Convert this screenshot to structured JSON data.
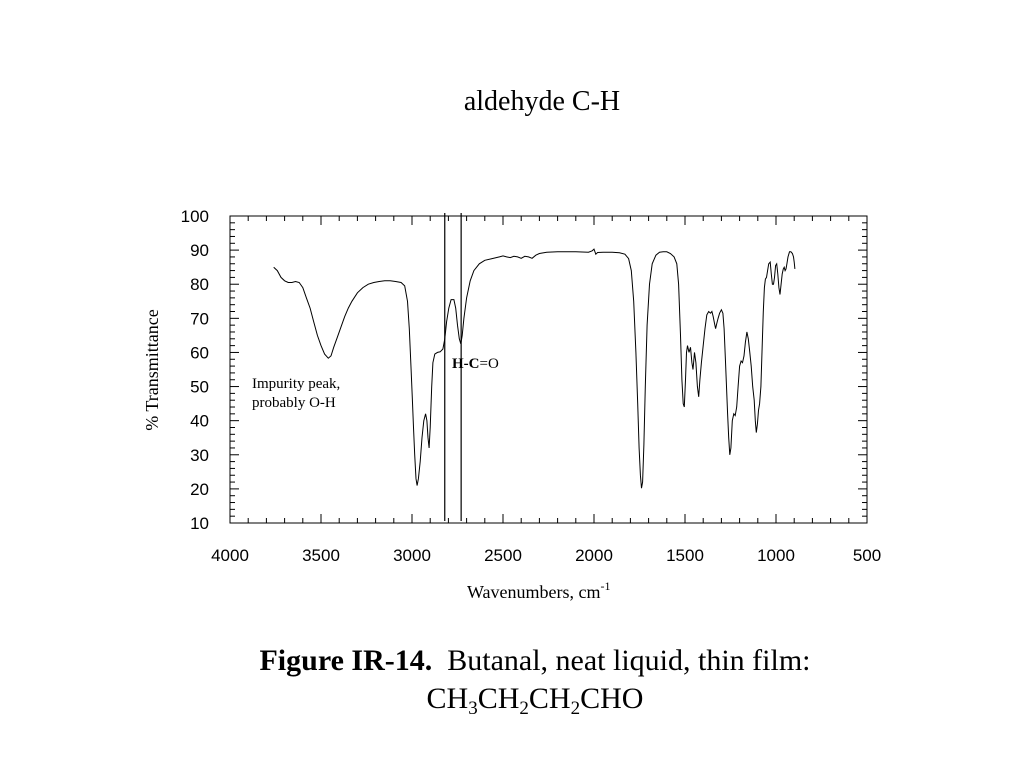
{
  "slide": {
    "title": "aldehyde C-H"
  },
  "chart_data": {
    "type": "line",
    "title": "",
    "xlabel": "Wavenumbers, cm",
    "xlabel_sup": "-1",
    "ylabel": "% Transmittance",
    "xlim": [
      4000,
      500
    ],
    "ylim": [
      10,
      100
    ],
    "x_ticks": [
      "4000",
      "3500",
      "3000",
      "2500",
      "2000",
      "1500",
      "1000",
      "500"
    ],
    "y_ticks": [
      "10",
      "20",
      "30",
      "40",
      "50",
      "60",
      "70",
      "80",
      "90",
      "100"
    ],
    "x_tick_values": [
      4000,
      3500,
      3000,
      2500,
      2000,
      1500,
      1000,
      500
    ],
    "y_tick_values": [
      10,
      20,
      30,
      40,
      50,
      60,
      70,
      80,
      90,
      100
    ],
    "grid": false,
    "vertical_lines": [
      2820,
      2730
    ],
    "annotations": {
      "impurity_line1": "Impurity peak,",
      "impurity_line2": "probably O-H",
      "hco_bold": "H-C",
      "hco_rest": "=O"
    },
    "series": [
      {
        "points": [
          [
            3760,
            85
          ],
          [
            3740,
            84
          ],
          [
            3720,
            82
          ],
          [
            3700,
            81
          ],
          [
            3680,
            80.5
          ],
          [
            3660,
            80.5
          ],
          [
            3640,
            80.8
          ],
          [
            3620,
            80.5
          ],
          [
            3600,
            79
          ],
          [
            3580,
            76
          ],
          [
            3560,
            73
          ],
          [
            3540,
            69
          ],
          [
            3520,
            65
          ],
          [
            3500,
            62
          ],
          [
            3480,
            59.5
          ],
          [
            3460,
            58.3
          ],
          [
            3445,
            59
          ],
          [
            3430,
            61.5
          ],
          [
            3410,
            64.5
          ],
          [
            3390,
            67.5
          ],
          [
            3370,
            70.5
          ],
          [
            3350,
            73
          ],
          [
            3330,
            75
          ],
          [
            3300,
            77.5
          ],
          [
            3270,
            79
          ],
          [
            3240,
            80
          ],
          [
            3210,
            80.5
          ],
          [
            3180,
            80.8
          ],
          [
            3150,
            81
          ],
          [
            3120,
            81
          ],
          [
            3090,
            80.8
          ],
          [
            3060,
            80.5
          ],
          [
            3040,
            79.5
          ],
          [
            3025,
            75
          ],
          [
            3015,
            67
          ],
          [
            3005,
            55
          ],
          [
            2998,
            46
          ],
          [
            2992,
            38
          ],
          [
            2985,
            30
          ],
          [
            2978,
            23
          ],
          [
            2972,
            21
          ],
          [
            2965,
            23
          ],
          [
            2955,
            28
          ],
          [
            2945,
            35
          ],
          [
            2935,
            40
          ],
          [
            2925,
            42
          ],
          [
            2918,
            40
          ],
          [
            2912,
            35
          ],
          [
            2906,
            32
          ],
          [
            2900,
            38
          ],
          [
            2892,
            50
          ],
          [
            2885,
            57
          ],
          [
            2875,
            59.5
          ],
          [
            2860,
            60
          ],
          [
            2845,
            60.2
          ],
          [
            2830,
            61
          ],
          [
            2820,
            64
          ],
          [
            2810,
            69
          ],
          [
            2798,
            73
          ],
          [
            2785,
            75.5
          ],
          [
            2770,
            75.5
          ],
          [
            2760,
            73
          ],
          [
            2750,
            68
          ],
          [
            2740,
            64
          ],
          [
            2732,
            62.5
          ],
          [
            2724,
            65
          ],
          [
            2715,
            70
          ],
          [
            2700,
            76
          ],
          [
            2680,
            81
          ],
          [
            2660,
            84
          ],
          [
            2630,
            86
          ],
          [
            2600,
            87
          ],
          [
            2560,
            87.5
          ],
          [
            2520,
            88
          ],
          [
            2500,
            88.3
          ],
          [
            2480,
            88
          ],
          [
            2460,
            87.8
          ],
          [
            2440,
            88.2
          ],
          [
            2420,
            88
          ],
          [
            2400,
            87.6
          ],
          [
            2380,
            88.2
          ],
          [
            2360,
            88
          ],
          [
            2340,
            87.6
          ],
          [
            2320,
            88.5
          ],
          [
            2300,
            89
          ],
          [
            2260,
            89.4
          ],
          [
            2200,
            89.5
          ],
          [
            2100,
            89.5
          ],
          [
            2030,
            89.4
          ],
          [
            2010,
            89.8
          ],
          [
            2000,
            90.3
          ],
          [
            1990,
            88.8
          ],
          [
            1980,
            89.3
          ],
          [
            1950,
            89.4
          ],
          [
            1900,
            89.4
          ],
          [
            1860,
            89.2
          ],
          [
            1830,
            88.8
          ],
          [
            1810,
            87.5
          ],
          [
            1795,
            84
          ],
          [
            1782,
            75
          ],
          [
            1770,
            60
          ],
          [
            1760,
            45
          ],
          [
            1752,
            32
          ],
          [
            1745,
            24
          ],
          [
            1739,
            20.2
          ],
          [
            1733,
            22
          ],
          [
            1726,
            33
          ],
          [
            1718,
            50
          ],
          [
            1708,
            68
          ],
          [
            1695,
            80
          ],
          [
            1680,
            86
          ],
          [
            1660,
            88.5
          ],
          [
            1640,
            89.4
          ],
          [
            1620,
            89.5
          ],
          [
            1600,
            89.5
          ],
          [
            1580,
            89
          ],
          [
            1560,
            88
          ],
          [
            1545,
            86
          ],
          [
            1535,
            80
          ],
          [
            1525,
            65
          ],
          [
            1517,
            52
          ],
          [
            1510,
            45
          ],
          [
            1504,
            44
          ],
          [
            1497,
            52
          ],
          [
            1492,
            60
          ],
          [
            1486,
            62
          ],
          [
            1478,
            60
          ],
          [
            1470,
            61.5
          ],
          [
            1462,
            57
          ],
          [
            1456,
            55
          ],
          [
            1448,
            60
          ],
          [
            1440,
            57
          ],
          [
            1432,
            50
          ],
          [
            1425,
            47
          ],
          [
            1418,
            52
          ],
          [
            1410,
            57
          ],
          [
            1400,
            62
          ],
          [
            1390,
            67
          ],
          [
            1380,
            71
          ],
          [
            1370,
            72
          ],
          [
            1360,
            71.5
          ],
          [
            1352,
            72
          ],
          [
            1345,
            70.5
          ],
          [
            1338,
            68.5
          ],
          [
            1332,
            67
          ],
          [
            1325,
            68.5
          ],
          [
            1318,
            70
          ],
          [
            1310,
            71.5
          ],
          [
            1300,
            72.5
          ],
          [
            1292,
            71.5
          ],
          [
            1285,
            67
          ],
          [
            1278,
            58
          ],
          [
            1272,
            50
          ],
          [
            1266,
            42
          ],
          [
            1260,
            35
          ],
          [
            1254,
            30
          ],
          [
            1248,
            32
          ],
          [
            1240,
            40
          ],
          [
            1232,
            42
          ],
          [
            1224,
            41.5
          ],
          [
            1216,
            44
          ],
          [
            1208,
            50
          ],
          [
            1200,
            56
          ],
          [
            1192,
            57.5
          ],
          [
            1184,
            57
          ],
          [
            1176,
            59
          ],
          [
            1168,
            63
          ],
          [
            1160,
            66
          ],
          [
            1152,
            64
          ],
          [
            1144,
            60
          ],
          [
            1136,
            56
          ],
          [
            1128,
            50
          ],
          [
            1120,
            46
          ],
          [
            1114,
            40
          ],
          [
            1108,
            36.5
          ],
          [
            1102,
            39
          ],
          [
            1096,
            43
          ],
          [
            1090,
            45
          ],
          [
            1083,
            50
          ],
          [
            1076,
            62
          ],
          [
            1070,
            72
          ],
          [
            1064,
            79
          ],
          [
            1058,
            81.5
          ],
          [
            1052,
            82
          ],
          [
            1046,
            84
          ],
          [
            1040,
            86
          ],
          [
            1032,
            86.5
          ],
          [
            1026,
            83
          ],
          [
            1020,
            80
          ],
          [
            1014,
            80
          ],
          [
            1008,
            82
          ],
          [
            1002,
            85.5
          ],
          [
            996,
            86
          ],
          [
            990,
            83
          ],
          [
            984,
            79
          ],
          [
            978,
            77
          ],
          [
            972,
            80
          ],
          [
            966,
            83
          ],
          [
            960,
            84.5
          ],
          [
            955,
            85
          ],
          [
            950,
            84
          ],
          [
            945,
            84.5
          ],
          [
            940,
            86
          ],
          [
            934,
            88
          ],
          [
            926,
            89.5
          ],
          [
            918,
            89.5
          ],
          [
            910,
            89
          ],
          [
            904,
            88
          ],
          [
            900,
            86.5
          ],
          [
            896,
            84.5
          ]
        ]
      }
    ]
  }
}
